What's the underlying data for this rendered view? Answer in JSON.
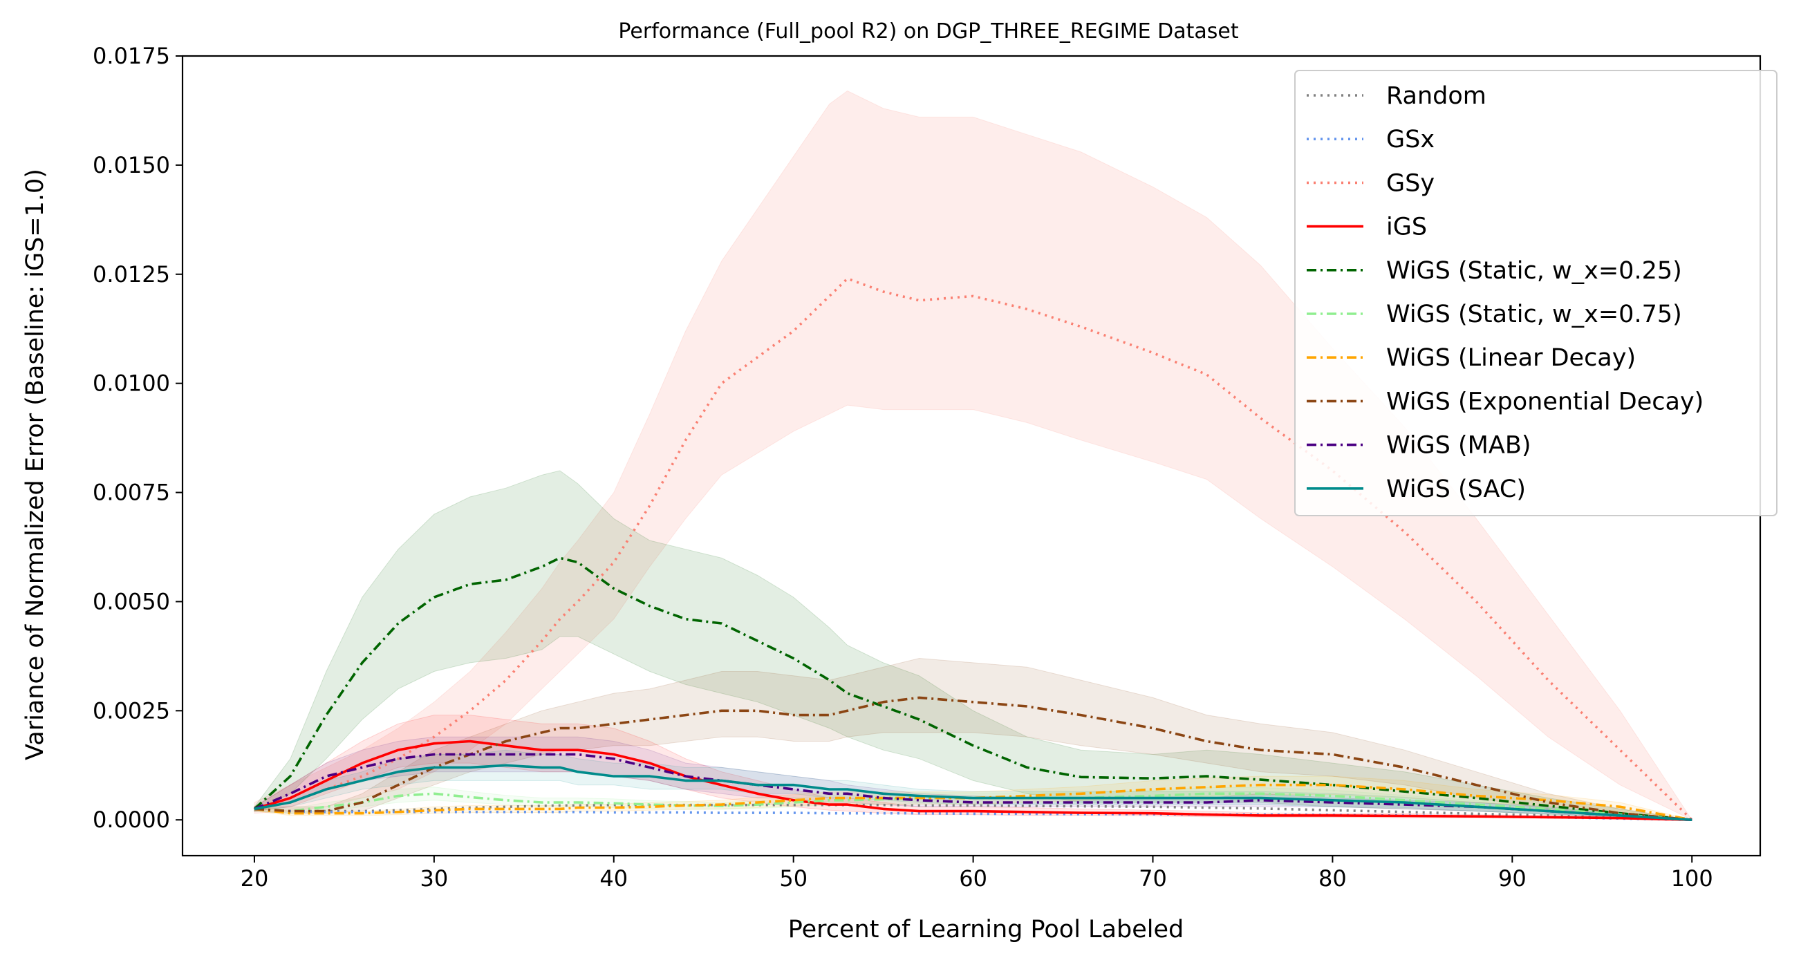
{
  "chart_data": {
    "type": "line",
    "title": "Performance (Full_pool R2) on DGP_THREE_REGIME Dataset",
    "xlabel": "Percent of Learning Pool Labeled",
    "ylabel": "Variance of Normalized Error (Baseline: iGS=1.0)",
    "xlim": [
      16.0,
      103.8
    ],
    "ylim": [
      -0.00082,
      0.0175
    ],
    "xticks": [
      "20",
      "30",
      "40",
      "50",
      "60",
      "70",
      "80",
      "90",
      "100"
    ],
    "yticks": [
      "0.0000",
      "0.0025",
      "0.0050",
      "0.0075",
      "0.0100",
      "0.0125",
      "0.0150",
      "0.0175"
    ],
    "grid": false,
    "legend_position": "upper-right",
    "x": [
      20,
      22,
      24,
      26,
      28,
      30,
      32,
      34,
      36,
      37,
      38,
      40,
      42,
      44,
      46,
      48,
      50,
      52,
      53,
      55,
      57,
      60,
      63,
      66,
      70,
      73,
      76,
      80,
      84,
      88,
      92,
      96,
      100
    ],
    "series": [
      {
        "name": "Random",
        "color": "#808080",
        "dash": "dot",
        "values": [
          0.00025,
          0.0002,
          0.0002,
          0.0002,
          0.00022,
          0.00025,
          0.00028,
          0.0003,
          0.00032,
          0.00033,
          0.00033,
          0.00034,
          0.00034,
          0.00034,
          0.00034,
          0.00034,
          0.00034,
          0.00034,
          0.00034,
          0.00034,
          0.00033,
          0.00033,
          0.00032,
          0.00031,
          0.0003,
          0.00028,
          0.00026,
          0.00022,
          0.00018,
          0.00014,
          0.0001,
          5e-05,
          0.0
        ]
      },
      {
        "name": "GSx",
        "color": "#6495ED",
        "dash": "dot",
        "values": [
          0.00025,
          0.0002,
          0.00018,
          0.00018,
          0.00018,
          0.00018,
          0.00018,
          0.00018,
          0.00018,
          0.00018,
          0.00018,
          0.00017,
          0.00017,
          0.00017,
          0.00016,
          0.00016,
          0.00016,
          0.00015,
          0.00015,
          0.00015,
          0.00015,
          0.00014,
          0.00014,
          0.00013,
          0.00013,
          0.00012,
          0.00012,
          0.00011,
          0.0001,
          8e-05,
          6e-05,
          3e-05,
          0.0
        ]
      },
      {
        "name": "GSy",
        "color": "#FA8072",
        "dash": "dot",
        "values": [
          0.00025,
          0.0004,
          0.0007,
          0.001,
          0.0014,
          0.0019,
          0.0025,
          0.0032,
          0.0041,
          0.0046,
          0.005,
          0.0059,
          0.0072,
          0.0087,
          0.01,
          0.0106,
          0.0112,
          0.012,
          0.0124,
          0.0121,
          0.0119,
          0.012,
          0.0117,
          0.0113,
          0.0107,
          0.0102,
          0.0092,
          0.008,
          0.0066,
          0.005,
          0.0032,
          0.0016,
          0.0
        ]
      },
      {
        "name": "iGS",
        "color": "#FF0000",
        "dash": "solid",
        "values": [
          0.00025,
          0.0005,
          0.0009,
          0.0013,
          0.0016,
          0.00175,
          0.0018,
          0.0017,
          0.0016,
          0.0016,
          0.0016,
          0.0015,
          0.0013,
          0.001,
          0.0008,
          0.0006,
          0.00045,
          0.00035,
          0.00035,
          0.00025,
          0.0002,
          0.0002,
          0.00018,
          0.00016,
          0.00015,
          0.00012,
          0.0001,
          0.0001,
          9e-05,
          8e-05,
          6e-05,
          4e-05,
          0.0
        ]
      },
      {
        "name": "WiGS (Static, w_x=0.25)",
        "color": "#006400",
        "dash": "dashdot",
        "values": [
          0.00025,
          0.001,
          0.0024,
          0.0036,
          0.0045,
          0.0051,
          0.0054,
          0.0055,
          0.0058,
          0.006,
          0.0059,
          0.0053,
          0.0049,
          0.0046,
          0.0045,
          0.0041,
          0.0037,
          0.0032,
          0.0029,
          0.0026,
          0.0023,
          0.0017,
          0.0012,
          0.00098,
          0.00095,
          0.001,
          0.00092,
          0.0008,
          0.00065,
          0.0005,
          0.00032,
          0.00015,
          0.0
        ]
      },
      {
        "name": "WiGS (Static, w_x=0.75)",
        "color": "#90EE90",
        "dash": "dashdot",
        "values": [
          0.00025,
          0.0002,
          0.0003,
          0.0004,
          0.00055,
          0.0006,
          0.00052,
          0.00045,
          0.0004,
          0.0004,
          0.0004,
          0.00038,
          0.00035,
          0.00033,
          0.00032,
          0.00035,
          0.0004,
          0.00045,
          0.00045,
          0.00047,
          0.0005,
          0.0005,
          0.0005,
          0.0005,
          0.00055,
          0.0006,
          0.0006,
          0.00055,
          0.00045,
          0.00035,
          0.00025,
          0.00012,
          0.0
        ]
      },
      {
        "name": "WiGS (Linear Decay)",
        "color": "#FFA500",
        "dash": "dashdot",
        "values": [
          0.00025,
          0.00015,
          0.00015,
          0.00015,
          0.00018,
          0.00022,
          0.00025,
          0.00025,
          0.00025,
          0.00025,
          0.00028,
          0.00028,
          0.0003,
          0.00033,
          0.00035,
          0.0004,
          0.00045,
          0.0005,
          0.0005,
          0.0005,
          0.0005,
          0.0005,
          0.00055,
          0.0006,
          0.0007,
          0.00075,
          0.0008,
          0.0008,
          0.0007,
          0.00055,
          0.00045,
          0.0003,
          0.0
        ]
      },
      {
        "name": "WiGS (Exponential Decay)",
        "color": "#8B4513",
        "dash": "dashdot",
        "values": [
          0.00025,
          0.0002,
          0.0002,
          0.0004,
          0.0008,
          0.0012,
          0.0015,
          0.0018,
          0.002,
          0.0021,
          0.0021,
          0.0022,
          0.0023,
          0.0024,
          0.0025,
          0.0025,
          0.0024,
          0.0024,
          0.0025,
          0.0027,
          0.0028,
          0.0027,
          0.0026,
          0.0024,
          0.0021,
          0.0018,
          0.0016,
          0.0015,
          0.0012,
          0.0008,
          0.0004,
          0.00015,
          0.0
        ]
      },
      {
        "name": "WiGS (MAB)",
        "color": "#4B0082",
        "dash": "dashdot",
        "values": [
          0.00025,
          0.0006,
          0.001,
          0.0012,
          0.0014,
          0.0015,
          0.0015,
          0.0015,
          0.0015,
          0.0015,
          0.0015,
          0.0014,
          0.0012,
          0.001,
          0.0009,
          0.0008,
          0.0007,
          0.0006,
          0.0006,
          0.0005,
          0.00045,
          0.0004,
          0.0004,
          0.0004,
          0.0004,
          0.0004,
          0.00045,
          0.0004,
          0.00035,
          0.0003,
          0.0002,
          0.0001,
          0.0
        ]
      },
      {
        "name": "WiGS (SAC)",
        "color": "#008B8B",
        "dash": "solid",
        "values": [
          0.00025,
          0.0004,
          0.0007,
          0.0009,
          0.0011,
          0.0012,
          0.0012,
          0.00125,
          0.0012,
          0.0012,
          0.0011,
          0.001,
          0.001,
          0.0009,
          0.0009,
          0.0008,
          0.0008,
          0.0007,
          0.0007,
          0.0006,
          0.00055,
          0.0005,
          0.0005,
          0.0005,
          0.0005,
          0.0005,
          0.0005,
          0.00045,
          0.0004,
          0.0003,
          0.0002,
          0.0001,
          0.0
        ]
      }
    ],
    "bands": [
      {
        "series": "GSy",
        "color": "#FA8072",
        "opacity": 0.14,
        "low": [
          0.00015,
          0.0002,
          0.0003,
          0.0005,
          0.0007,
          0.0011,
          0.0016,
          0.0022,
          0.003,
          0.0034,
          0.0038,
          0.0046,
          0.0058,
          0.0069,
          0.0079,
          0.0084,
          0.0089,
          0.0093,
          0.0095,
          0.0094,
          0.0094,
          0.0094,
          0.0091,
          0.0087,
          0.0082,
          0.0078,
          0.0069,
          0.0058,
          0.0046,
          0.0033,
          0.0019,
          0.0008,
          0.0
        ],
        "high": [
          0.0004,
          0.0008,
          0.0012,
          0.0016,
          0.0021,
          0.0027,
          0.0034,
          0.0043,
          0.0053,
          0.0059,
          0.0064,
          0.0075,
          0.0093,
          0.0112,
          0.0128,
          0.014,
          0.0152,
          0.0164,
          0.0167,
          0.0163,
          0.0161,
          0.0161,
          0.0157,
          0.0153,
          0.0145,
          0.0138,
          0.0127,
          0.0108,
          0.009,
          0.0069,
          0.0047,
          0.0025,
          0.0
        ]
      },
      {
        "series": "WiGS (Static, w_x=0.25)",
        "color": "#006400",
        "opacity": 0.11,
        "low": [
          0.0002,
          0.0006,
          0.0014,
          0.0023,
          0.003,
          0.0034,
          0.0036,
          0.0037,
          0.0039,
          0.0042,
          0.0042,
          0.0038,
          0.0034,
          0.0031,
          0.0029,
          0.0027,
          0.0024,
          0.0021,
          0.0019,
          0.0016,
          0.0014,
          0.0009,
          0.0006,
          0.0004,
          0.0004,
          0.0004,
          0.0004,
          0.0003,
          0.00025,
          0.0002,
          0.00012,
          5e-05,
          0.0
        ],
        "high": [
          0.0003,
          0.0014,
          0.0034,
          0.0051,
          0.0062,
          0.007,
          0.0074,
          0.0076,
          0.0079,
          0.008,
          0.0077,
          0.0069,
          0.0064,
          0.0062,
          0.006,
          0.0056,
          0.0051,
          0.0044,
          0.004,
          0.0036,
          0.0033,
          0.0025,
          0.0019,
          0.0016,
          0.0015,
          0.0016,
          0.0015,
          0.0013,
          0.0011,
          0.0008,
          0.0005,
          0.00025,
          0.0
        ]
      },
      {
        "series": "WiGS (Exponential Decay)",
        "color": "#8B4513",
        "opacity": 0.11,
        "low": [
          0.0002,
          0.00015,
          0.00015,
          0.0002,
          0.0005,
          0.0008,
          0.0011,
          0.0013,
          0.0015,
          0.0016,
          0.0016,
          0.0017,
          0.0017,
          0.0018,
          0.0019,
          0.0019,
          0.0018,
          0.0018,
          0.0019,
          0.002,
          0.002,
          0.002,
          0.0019,
          0.0017,
          0.0015,
          0.0013,
          0.0011,
          0.001,
          0.0008,
          0.0005,
          0.00025,
          0.0001,
          0.0
        ],
        "high": [
          0.0003,
          0.0003,
          0.0003,
          0.0006,
          0.0011,
          0.0016,
          0.0019,
          0.0022,
          0.0025,
          0.0026,
          0.0027,
          0.0029,
          0.003,
          0.0032,
          0.0034,
          0.0034,
          0.0033,
          0.0032,
          0.0033,
          0.0035,
          0.0037,
          0.0036,
          0.0035,
          0.0032,
          0.0028,
          0.0024,
          0.0022,
          0.002,
          0.0016,
          0.0011,
          0.0006,
          0.00025,
          0.0
        ]
      },
      {
        "series": "iGS",
        "color": "#FF0000",
        "opacity": 0.09,
        "low": [
          0.0002,
          0.0003,
          0.0006,
          0.0009,
          0.0012,
          0.0013,
          0.0013,
          0.0012,
          0.0011,
          0.0011,
          0.0011,
          0.001,
          0.0009,
          0.0007,
          0.0005,
          0.0004,
          0.0003,
          0.00022,
          0.0002,
          0.00015,
          0.00012,
          0.00012,
          0.0001,
          0.0001,
          9e-05,
          7e-05,
          6e-05,
          6e-05,
          5e-05,
          5e-05,
          4e-05,
          2e-05,
          0.0
        ],
        "high": [
          0.0003,
          0.0008,
          0.0013,
          0.0018,
          0.0022,
          0.0024,
          0.0024,
          0.0023,
          0.0022,
          0.0022,
          0.0022,
          0.0021,
          0.0018,
          0.0014,
          0.0011,
          0.0009,
          0.0007,
          0.0005,
          0.0005,
          0.0004,
          0.0003,
          0.0003,
          0.00028,
          0.00025,
          0.00022,
          0.0002,
          0.00016,
          0.00015,
          0.00014,
          0.00012,
          0.0001,
          6e-05,
          0.0
        ]
      },
      {
        "series": "WiGS (MAB)",
        "color": "#4B0082",
        "opacity": 0.09,
        "low": [
          0.0002,
          0.0004,
          0.0007,
          0.0009,
          0.001,
          0.0011,
          0.0011,
          0.0011,
          0.0011,
          0.0011,
          0.0011,
          0.001,
          0.0009,
          0.0007,
          0.0006,
          0.0005,
          0.0005,
          0.0004,
          0.0004,
          0.00035,
          0.0003,
          0.0003,
          0.0003,
          0.0003,
          0.0003,
          0.0003,
          0.0003,
          0.0003,
          0.00025,
          0.0002,
          0.00014,
          6e-05,
          0.0
        ],
        "high": [
          0.0003,
          0.0008,
          0.0013,
          0.0016,
          0.0018,
          0.0019,
          0.0019,
          0.0019,
          0.0019,
          0.0019,
          0.0019,
          0.0018,
          0.0016,
          0.0013,
          0.0012,
          0.0011,
          0.001,
          0.0009,
          0.0008,
          0.0007,
          0.0006,
          0.00055,
          0.0005,
          0.0005,
          0.0005,
          0.0005,
          0.0006,
          0.0005,
          0.00045,
          0.0004,
          0.0003,
          0.00015,
          0.0
        ]
      },
      {
        "series": "WiGS (SAC)",
        "color": "#008B8B",
        "opacity": 0.09,
        "low": [
          0.0002,
          0.0003,
          0.0005,
          0.0007,
          0.0008,
          0.0009,
          0.0009,
          0.0009,
          0.0009,
          0.0009,
          0.0008,
          0.0008,
          0.0007,
          0.0007,
          0.0007,
          0.0006,
          0.0006,
          0.0005,
          0.0005,
          0.00045,
          0.0004,
          0.00035,
          0.00035,
          0.00035,
          0.00035,
          0.00035,
          0.00035,
          0.0003,
          0.00028,
          0.0002,
          0.00014,
          7e-05,
          0.0
        ],
        "high": [
          0.0003,
          0.0005,
          0.0009,
          0.0011,
          0.0014,
          0.0015,
          0.0015,
          0.0016,
          0.0015,
          0.0015,
          0.0014,
          0.0013,
          0.0013,
          0.0012,
          0.0012,
          0.0011,
          0.001,
          0.0009,
          0.0009,
          0.0008,
          0.0007,
          0.00065,
          0.00065,
          0.00065,
          0.00065,
          0.00065,
          0.00065,
          0.0006,
          0.00052,
          0.0004,
          0.00027,
          0.00013,
          0.0
        ]
      },
      {
        "series": "WiGS (Linear Decay)",
        "color": "#FFA500",
        "opacity": 0.09,
        "low": [
          0.0002,
          0.0001,
          0.0001,
          0.0001,
          0.00012,
          0.00015,
          0.00017,
          0.00017,
          0.00017,
          0.00017,
          0.0002,
          0.0002,
          0.00022,
          0.00024,
          0.00025,
          0.00028,
          0.00032,
          0.00036,
          0.00036,
          0.00036,
          0.00036,
          0.00036,
          0.0004,
          0.00044,
          0.0005,
          0.00054,
          0.00058,
          0.00058,
          0.0005,
          0.0004,
          0.00032,
          0.0002,
          0.0
        ],
        "high": [
          0.0003,
          0.0002,
          0.0002,
          0.0002,
          0.00024,
          0.0003,
          0.00033,
          0.00033,
          0.00033,
          0.00033,
          0.00036,
          0.00036,
          0.0004,
          0.00042,
          0.00045,
          0.00052,
          0.00058,
          0.00064,
          0.00064,
          0.00064,
          0.00064,
          0.00064,
          0.0007,
          0.00076,
          0.0009,
          0.00096,
          0.001,
          0.001,
          0.0009,
          0.0007,
          0.00058,
          0.0004,
          0.0
        ]
      },
      {
        "series": "WiGS (Static, w_x=0.75)",
        "color": "#90EE90",
        "opacity": 0.09,
        "low": [
          0.0002,
          0.00015,
          0.0002,
          0.0003,
          0.0004,
          0.00045,
          0.0004,
          0.00035,
          0.0003,
          0.0003,
          0.0003,
          0.00028,
          0.00026,
          0.00024,
          0.00024,
          0.00026,
          0.0003,
          0.00034,
          0.00034,
          0.00035,
          0.00037,
          0.00037,
          0.00037,
          0.00037,
          0.0004,
          0.00044,
          0.00044,
          0.0004,
          0.00033,
          0.00026,
          0.00018,
          8e-05,
          0.0
        ],
        "high": [
          0.0003,
          0.00025,
          0.0004,
          0.0005,
          0.0007,
          0.00075,
          0.00065,
          0.00056,
          0.0005,
          0.0005,
          0.0005,
          0.00048,
          0.00044,
          0.00042,
          0.0004,
          0.00044,
          0.0005,
          0.00056,
          0.00056,
          0.00058,
          0.00062,
          0.00062,
          0.00062,
          0.00062,
          0.00068,
          0.00074,
          0.00074,
          0.00068,
          0.00056,
          0.00044,
          0.0003,
          0.00015,
          0.0
        ]
      }
    ]
  }
}
